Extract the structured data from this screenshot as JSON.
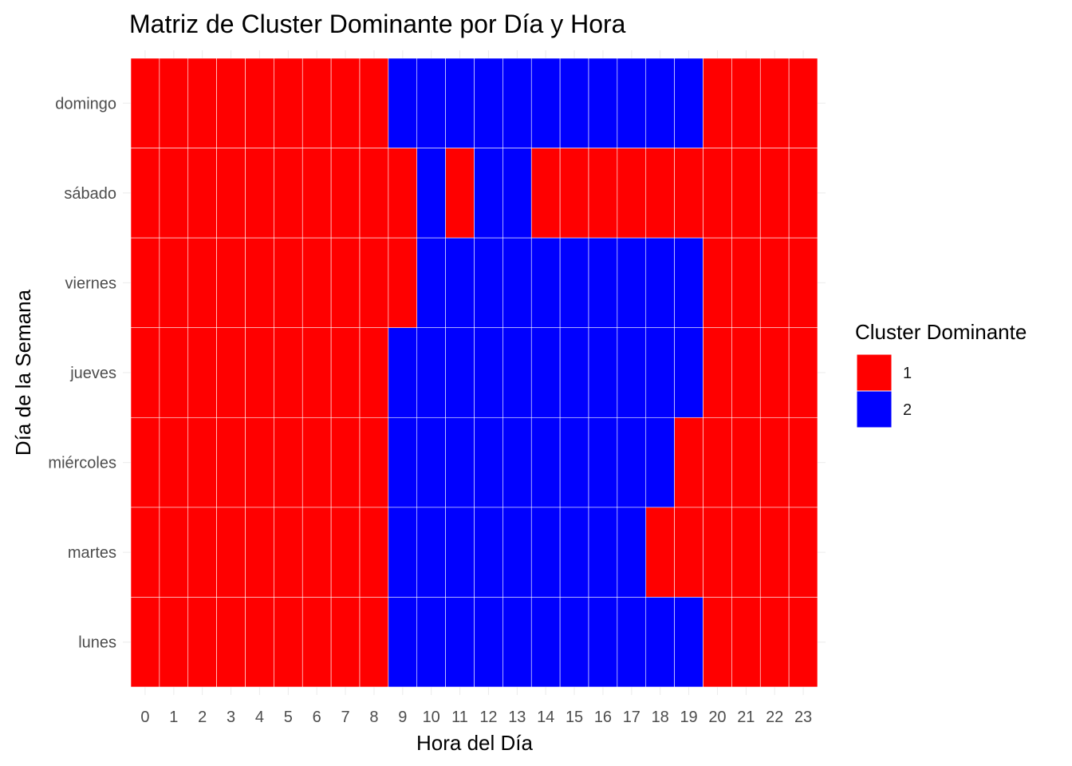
{
  "chart_data": {
    "type": "heatmap",
    "title": "Matriz de Cluster Dominante por Día y Hora",
    "xlabel": "Hora del Día",
    "ylabel": "Día de la Semana",
    "x": [
      "0",
      "1",
      "2",
      "3",
      "4",
      "5",
      "6",
      "7",
      "8",
      "9",
      "10",
      "11",
      "12",
      "13",
      "14",
      "15",
      "16",
      "17",
      "18",
      "19",
      "20",
      "21",
      "22",
      "23"
    ],
    "y_bottom_to_top": [
      "lunes",
      "martes",
      "miércoles",
      "jueves",
      "viernes",
      "sábado",
      "domingo"
    ],
    "rows": [
      {
        "day": "domingo",
        "values": [
          1,
          1,
          1,
          1,
          1,
          1,
          1,
          1,
          1,
          2,
          2,
          2,
          2,
          2,
          2,
          2,
          2,
          2,
          2,
          2,
          1,
          1,
          1,
          1
        ]
      },
      {
        "day": "sábado",
        "values": [
          1,
          1,
          1,
          1,
          1,
          1,
          1,
          1,
          1,
          1,
          2,
          1,
          2,
          2,
          1,
          1,
          1,
          1,
          1,
          1,
          1,
          1,
          1,
          1
        ]
      },
      {
        "day": "viernes",
        "values": [
          1,
          1,
          1,
          1,
          1,
          1,
          1,
          1,
          1,
          1,
          2,
          2,
          2,
          2,
          2,
          2,
          2,
          2,
          2,
          2,
          1,
          1,
          1,
          1
        ]
      },
      {
        "day": "jueves",
        "values": [
          1,
          1,
          1,
          1,
          1,
          1,
          1,
          1,
          1,
          2,
          2,
          2,
          2,
          2,
          2,
          2,
          2,
          2,
          2,
          2,
          1,
          1,
          1,
          1
        ]
      },
      {
        "day": "miércoles",
        "values": [
          1,
          1,
          1,
          1,
          1,
          1,
          1,
          1,
          1,
          2,
          2,
          2,
          2,
          2,
          2,
          2,
          2,
          2,
          2,
          1,
          1,
          1,
          1,
          1
        ]
      },
      {
        "day": "martes",
        "values": [
          1,
          1,
          1,
          1,
          1,
          1,
          1,
          1,
          1,
          2,
          2,
          2,
          2,
          2,
          2,
          2,
          2,
          2,
          1,
          1,
          1,
          1,
          1,
          1
        ]
      },
      {
        "day": "lunes",
        "values": [
          1,
          1,
          1,
          1,
          1,
          1,
          1,
          1,
          1,
          2,
          2,
          2,
          2,
          2,
          2,
          2,
          2,
          2,
          2,
          2,
          1,
          1,
          1,
          1
        ]
      }
    ],
    "legend": {
      "title": "Cluster Dominante",
      "placement": "right",
      "items": [
        {
          "label": "1",
          "color": "#FF0000"
        },
        {
          "label": "2",
          "color": "#0000FF"
        }
      ]
    },
    "grid": true
  }
}
